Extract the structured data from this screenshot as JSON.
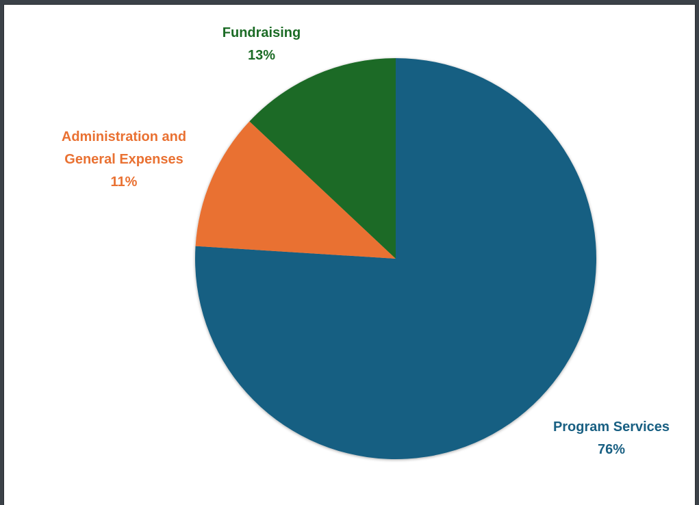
{
  "chart_data": {
    "type": "pie",
    "slices": [
      {
        "label": "Program Services",
        "value": 76,
        "display": "76%",
        "color": "#185f82"
      },
      {
        "label": "Administration and General Expenses",
        "label_lines": [
          "Administration and",
          "General Expenses"
        ],
        "value": 11,
        "display": "11%",
        "color": "#e97132"
      },
      {
        "label": "Fundraising",
        "value": 13,
        "display": "13%",
        "color": "#1b6b25"
      }
    ],
    "start_angle_deg": 0,
    "direction": "clockwise",
    "legend": "none",
    "data_labels": "outside"
  }
}
